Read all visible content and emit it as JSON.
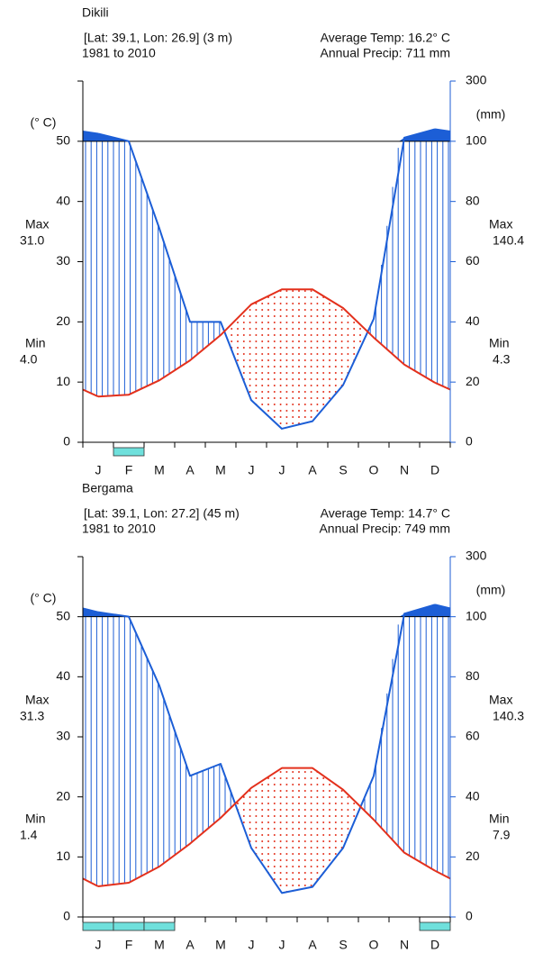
{
  "chart_data": [
    {
      "type": "climate",
      "title": "Dikili",
      "location": "[Lat: 39.1, Lon: 26.9] (3 m)",
      "period": "1981 to 2010",
      "average_temp": "Average Temp: 16.2° C",
      "annual_precip": "Annual Precip: 711 mm",
      "y_label": "(° C)",
      "y2_label": "(mm)",
      "left_notes": [
        {
          "label": "Max",
          "value": "31.0"
        },
        {
          "label": "Min",
          "value": "4.0"
        }
      ],
      "right_notes": [
        {
          "label": "Max",
          "value": "140.4"
        },
        {
          "label": "Min",
          "value": "4.3"
        }
      ],
      "categories": [
        "J",
        "F",
        "M",
        "A",
        "M",
        "J",
        "J",
        "A",
        "S",
        "O",
        "N",
        "D"
      ],
      "series": [
        {
          "color": "#e3301c",
          "values": [
            7.6,
            7.9,
            10.3,
            13.6,
            17.8,
            22.9,
            25.4,
            25.4,
            22.3,
            17.4,
            12.9,
            9.9
          ]
        },
        {
          "color": "#1c5ed6",
          "axis": "y2",
          "values": [
            125,
            100,
            71,
            40,
            40,
            14,
            4.5,
            7,
            19,
            41,
            112,
            140
          ]
        }
      ],
      "frost": [
        false,
        true,
        false,
        false,
        false,
        false,
        false,
        false,
        false,
        false,
        false,
        false
      ],
      "ylim": [
        0,
        60
      ],
      "yticks": [
        0,
        10,
        20,
        30,
        40,
        50
      ],
      "y2lim": [
        0,
        300
      ],
      "y2ticks": [
        0,
        20,
        40,
        60,
        80,
        100,
        300
      ]
    },
    {
      "type": "climate",
      "title": "Bergama",
      "location": "[Lat: 39.1, Lon: 27.2] (45 m)",
      "period": "1981 to 2010",
      "average_temp": "Average Temp: 14.7° C",
      "annual_precip": "Annual Precip: 749 mm",
      "y_label": "(° C)",
      "y2_label": "(mm)",
      "left_notes": [
        {
          "label": "Max",
          "value": "31.3"
        },
        {
          "label": "Min",
          "value": "1.4"
        }
      ],
      "right_notes": [
        {
          "label": "Max",
          "value": "140.3"
        },
        {
          "label": "Min",
          "value": "7.9"
        }
      ],
      "categories": [
        "J",
        "F",
        "M",
        "A",
        "M",
        "J",
        "J",
        "A",
        "S",
        "O",
        "N",
        "D"
      ],
      "series": [
        {
          "color": "#e3301c",
          "values": [
            5.1,
            5.7,
            8.4,
            12.2,
            16.5,
            21.5,
            24.8,
            24.8,
            21.2,
            16.2,
            10.7,
            7.7
          ]
        },
        {
          "color": "#1c5ed6",
          "axis": "y2",
          "values": [
            115,
            100,
            77,
            47,
            51,
            23,
            8,
            10,
            23,
            47,
            110,
            140
          ]
        }
      ],
      "frost": [
        true,
        true,
        true,
        false,
        false,
        false,
        false,
        false,
        false,
        false,
        false,
        true
      ],
      "ylim": [
        0,
        60
      ],
      "yticks": [
        0,
        10,
        20,
        30,
        40,
        50
      ],
      "y2lim": [
        0,
        300
      ],
      "y2ticks": [
        0,
        20,
        40,
        60,
        80,
        100,
        300
      ]
    }
  ]
}
